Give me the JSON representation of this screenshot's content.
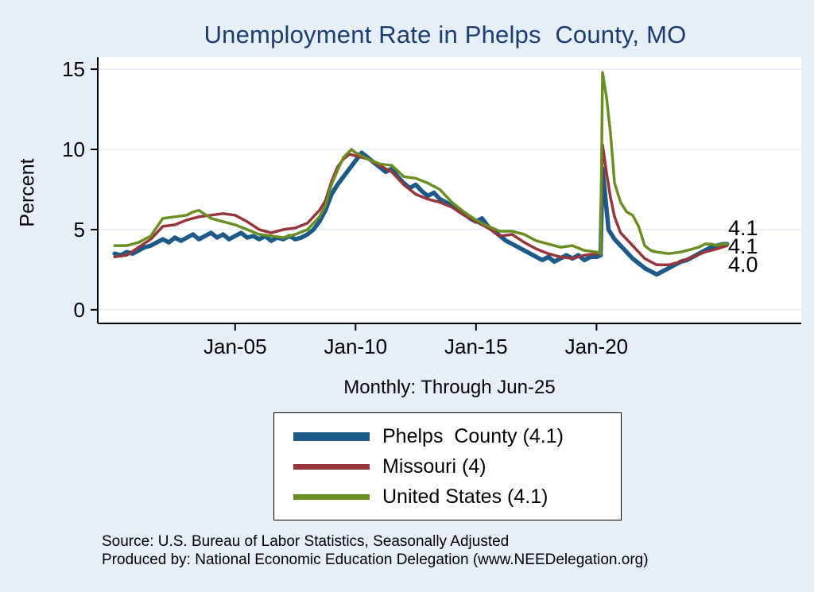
{
  "chart_data": {
    "type": "line",
    "title": "Unemployment Rate in Phelps  County, MO",
    "subtitle": "Monthly: Through Jun-25",
    "xlabel": "",
    "ylabel": "Percent",
    "xlim": [
      1999.3,
      2028.5
    ],
    "ylim": [
      -0.85,
      15.75
    ],
    "grid": true,
    "legend_position": "bottom",
    "colors": {
      "background": "#e6eff7",
      "title": "#1a3c6e",
      "grid": "#d9e4ef",
      "axis": "#000000"
    },
    "yticks": {
      "values": [
        0,
        5,
        10,
        15
      ],
      "labels": [
        "0",
        "5",
        "10",
        "15"
      ]
    },
    "xticks": {
      "values": [
        2005,
        2010,
        2015,
        2020
      ],
      "labels": [
        "Jan-05",
        "Jan-10",
        "Jan-15",
        "Jan-20"
      ]
    },
    "end_labels": [
      "4.1",
      "4.1",
      "4.0"
    ],
    "notes": [
      "Source: U.S. Bureau of Labor Statistics, Seasonally Adjusted",
      "Produced by: National Economic Education Delegation (www.NEEDelegation.org)"
    ],
    "series": [
      {
        "id": "phelps-county",
        "name": "Phelps County",
        "legend_label": "Phelps  County (4.1)",
        "last_value": 4.1,
        "color": "#1e5a87",
        "line_width": 5.5,
        "points": [
          [
            2000,
            3.5
          ],
          [
            2000.25,
            3.4
          ],
          [
            2000.5,
            3.6
          ],
          [
            2000.75,
            3.5
          ],
          [
            2001,
            3.7
          ],
          [
            2001.25,
            3.9
          ],
          [
            2001.5,
            4.0
          ],
          [
            2001.75,
            4.2
          ],
          [
            2002,
            4.4
          ],
          [
            2002.25,
            4.2
          ],
          [
            2002.5,
            4.5
          ],
          [
            2002.75,
            4.3
          ],
          [
            2003,
            4.5
          ],
          [
            2003.25,
            4.7
          ],
          [
            2003.5,
            4.4
          ],
          [
            2003.75,
            4.6
          ],
          [
            2004,
            4.8
          ],
          [
            2004.25,
            4.5
          ],
          [
            2004.5,
            4.7
          ],
          [
            2004.75,
            4.4
          ],
          [
            2005,
            4.6
          ],
          [
            2005.25,
            4.8
          ],
          [
            2005.5,
            4.5
          ],
          [
            2005.75,
            4.6
          ],
          [
            2006,
            4.4
          ],
          [
            2006.25,
            4.6
          ],
          [
            2006.5,
            4.3
          ],
          [
            2006.75,
            4.5
          ],
          [
            2007,
            4.4
          ],
          [
            2007.25,
            4.6
          ],
          [
            2007.5,
            4.4
          ],
          [
            2007.75,
            4.5
          ],
          [
            2008,
            4.7
          ],
          [
            2008.25,
            5.0
          ],
          [
            2008.5,
            5.5
          ],
          [
            2008.75,
            6.2
          ],
          [
            2009,
            7.2
          ],
          [
            2009.25,
            7.8
          ],
          [
            2009.5,
            8.3
          ],
          [
            2009.75,
            8.8
          ],
          [
            2010,
            9.3
          ],
          [
            2010.25,
            9.8
          ],
          [
            2010.5,
            9.5
          ],
          [
            2010.75,
            9.2
          ],
          [
            2011,
            8.9
          ],
          [
            2011.25,
            8.6
          ],
          [
            2011.5,
            8.8
          ],
          [
            2011.75,
            8.3
          ],
          [
            2012,
            7.9
          ],
          [
            2012.25,
            7.6
          ],
          [
            2012.5,
            7.8
          ],
          [
            2012.75,
            7.4
          ],
          [
            2013,
            7.1
          ],
          [
            2013.25,
            7.3
          ],
          [
            2013.5,
            6.9
          ],
          [
            2013.75,
            6.7
          ],
          [
            2014,
            6.5
          ],
          [
            2014.25,
            6.2
          ],
          [
            2014.5,
            6.0
          ],
          [
            2014.75,
            5.7
          ],
          [
            2015,
            5.5
          ],
          [
            2015.25,
            5.7
          ],
          [
            2015.5,
            5.2
          ],
          [
            2015.75,
            4.9
          ],
          [
            2016,
            4.6
          ],
          [
            2016.25,
            4.3
          ],
          [
            2016.5,
            4.1
          ],
          [
            2016.75,
            3.9
          ],
          [
            2017,
            3.7
          ],
          [
            2017.25,
            3.5
          ],
          [
            2017.5,
            3.3
          ],
          [
            2017.75,
            3.1
          ],
          [
            2018,
            3.3
          ],
          [
            2018.25,
            3.0
          ],
          [
            2018.5,
            3.2
          ],
          [
            2018.75,
            3.4
          ],
          [
            2019,
            3.2
          ],
          [
            2019.25,
            3.4
          ],
          [
            2019.5,
            3.1
          ],
          [
            2019.75,
            3.3
          ],
          [
            2020,
            3.3
          ],
          [
            2020.17,
            3.4
          ],
          [
            2020.25,
            8.8
          ],
          [
            2020.5,
            5.0
          ],
          [
            2020.75,
            4.4
          ],
          [
            2021,
            4.0
          ],
          [
            2021.25,
            3.6
          ],
          [
            2021.5,
            3.2
          ],
          [
            2021.75,
            2.9
          ],
          [
            2022,
            2.6
          ],
          [
            2022.25,
            2.4
          ],
          [
            2022.5,
            2.2
          ],
          [
            2022.75,
            2.4
          ],
          [
            2023,
            2.6
          ],
          [
            2023.25,
            2.8
          ],
          [
            2023.5,
            3.0
          ],
          [
            2023.75,
            3.1
          ],
          [
            2024,
            3.3
          ],
          [
            2024.25,
            3.5
          ],
          [
            2024.5,
            3.7
          ],
          [
            2024.75,
            3.9
          ],
          [
            2025,
            4.0
          ],
          [
            2025.25,
            4.1
          ],
          [
            2025.42,
            4.1
          ]
        ]
      },
      {
        "id": "missouri",
        "name": "Missouri",
        "legend_label": "Missouri (4)",
        "last_value": 4.0,
        "color": "#96353a",
        "line_width": 3.5,
        "points": [
          [
            2000,
            3.3
          ],
          [
            2000.5,
            3.4
          ],
          [
            2001,
            3.9
          ],
          [
            2001.5,
            4.4
          ],
          [
            2002,
            5.2
          ],
          [
            2002.5,
            5.3
          ],
          [
            2003,
            5.6
          ],
          [
            2003.5,
            5.8
          ],
          [
            2004,
            5.9
          ],
          [
            2004.5,
            6.0
          ],
          [
            2005,
            5.9
          ],
          [
            2005.5,
            5.5
          ],
          [
            2006,
            5.0
          ],
          [
            2006.5,
            4.8
          ],
          [
            2007,
            5.0
          ],
          [
            2007.5,
            5.1
          ],
          [
            2008,
            5.4
          ],
          [
            2008.5,
            6.2
          ],
          [
            2008.75,
            6.8
          ],
          [
            2009,
            8.0
          ],
          [
            2009.25,
            8.9
          ],
          [
            2009.5,
            9.4
          ],
          [
            2009.75,
            9.7
          ],
          [
            2010,
            9.6
          ],
          [
            2010.5,
            9.4
          ],
          [
            2011,
            9.0
          ],
          [
            2011.5,
            8.6
          ],
          [
            2012,
            7.8
          ],
          [
            2012.5,
            7.2
          ],
          [
            2013,
            6.9
          ],
          [
            2013.5,
            6.7
          ],
          [
            2014,
            6.4
          ],
          [
            2014.5,
            5.9
          ],
          [
            2015,
            5.5
          ],
          [
            2015.5,
            5.1
          ],
          [
            2016,
            4.6
          ],
          [
            2016.5,
            4.7
          ],
          [
            2017,
            4.2
          ],
          [
            2017.5,
            3.8
          ],
          [
            2018,
            3.5
          ],
          [
            2018.5,
            3.3
          ],
          [
            2019,
            3.2
          ],
          [
            2019.5,
            3.4
          ],
          [
            2020,
            3.5
          ],
          [
            2020.17,
            3.5
          ],
          [
            2020.25,
            10.3
          ],
          [
            2020.42,
            8.5
          ],
          [
            2020.58,
            7.0
          ],
          [
            2020.75,
            5.8
          ],
          [
            2021,
            4.8
          ],
          [
            2021.25,
            4.4
          ],
          [
            2021.5,
            4.0
          ],
          [
            2021.75,
            3.6
          ],
          [
            2022,
            3.2
          ],
          [
            2022.5,
            2.8
          ],
          [
            2023,
            2.8
          ],
          [
            2023.5,
            3.0
          ],
          [
            2024,
            3.3
          ],
          [
            2024.5,
            3.6
          ],
          [
            2025,
            3.8
          ],
          [
            2025.42,
            4.0
          ]
        ]
      },
      {
        "id": "united-states",
        "name": "United States",
        "legend_label": "United States (4.1)",
        "last_value": 4.1,
        "color": "#6b8e23",
        "line_width": 3.5,
        "points": [
          [
            2000,
            4.0
          ],
          [
            2000.5,
            4.0
          ],
          [
            2001,
            4.2
          ],
          [
            2001.5,
            4.6
          ],
          [
            2002,
            5.7
          ],
          [
            2002.5,
            5.8
          ],
          [
            2003,
            5.9
          ],
          [
            2003.25,
            6.1
          ],
          [
            2003.5,
            6.2
          ],
          [
            2004,
            5.7
          ],
          [
            2004.5,
            5.5
          ],
          [
            2005,
            5.3
          ],
          [
            2005.5,
            5.0
          ],
          [
            2006,
            4.7
          ],
          [
            2006.5,
            4.6
          ],
          [
            2007,
            4.5
          ],
          [
            2007.5,
            4.7
          ],
          [
            2008,
            5.0
          ],
          [
            2008.5,
            5.8
          ],
          [
            2008.75,
            6.5
          ],
          [
            2009,
            7.8
          ],
          [
            2009.25,
            8.7
          ],
          [
            2009.5,
            9.5
          ],
          [
            2009.83,
            10.0
          ],
          [
            2010,
            9.8
          ],
          [
            2010.5,
            9.4
          ],
          [
            2011,
            9.1
          ],
          [
            2011.5,
            9.0
          ],
          [
            2012,
            8.3
          ],
          [
            2012.5,
            8.2
          ],
          [
            2013,
            7.9
          ],
          [
            2013.5,
            7.5
          ],
          [
            2014,
            6.7
          ],
          [
            2014.5,
            6.1
          ],
          [
            2015,
            5.6
          ],
          [
            2015.5,
            5.2
          ],
          [
            2016,
            4.9
          ],
          [
            2016.5,
            4.9
          ],
          [
            2017,
            4.7
          ],
          [
            2017.5,
            4.3
          ],
          [
            2018,
            4.1
          ],
          [
            2018.5,
            3.9
          ],
          [
            2019,
            4.0
          ],
          [
            2019.5,
            3.7
          ],
          [
            2020,
            3.6
          ],
          [
            2020.17,
            3.5
          ],
          [
            2020.25,
            14.8
          ],
          [
            2020.42,
            13.2
          ],
          [
            2020.58,
            11.0
          ],
          [
            2020.75,
            7.9
          ],
          [
            2021,
            6.7
          ],
          [
            2021.25,
            6.1
          ],
          [
            2021.5,
            5.9
          ],
          [
            2021.75,
            5.2
          ],
          [
            2022,
            4.0
          ],
          [
            2022.25,
            3.7
          ],
          [
            2022.5,
            3.6
          ],
          [
            2023,
            3.5
          ],
          [
            2023.5,
            3.6
          ],
          [
            2024,
            3.8
          ],
          [
            2024.25,
            3.9
          ],
          [
            2024.5,
            4.1
          ],
          [
            2024.75,
            4.1
          ],
          [
            2025,
            4.0
          ],
          [
            2025.25,
            4.1
          ],
          [
            2025.42,
            4.1
          ]
        ]
      }
    ]
  }
}
